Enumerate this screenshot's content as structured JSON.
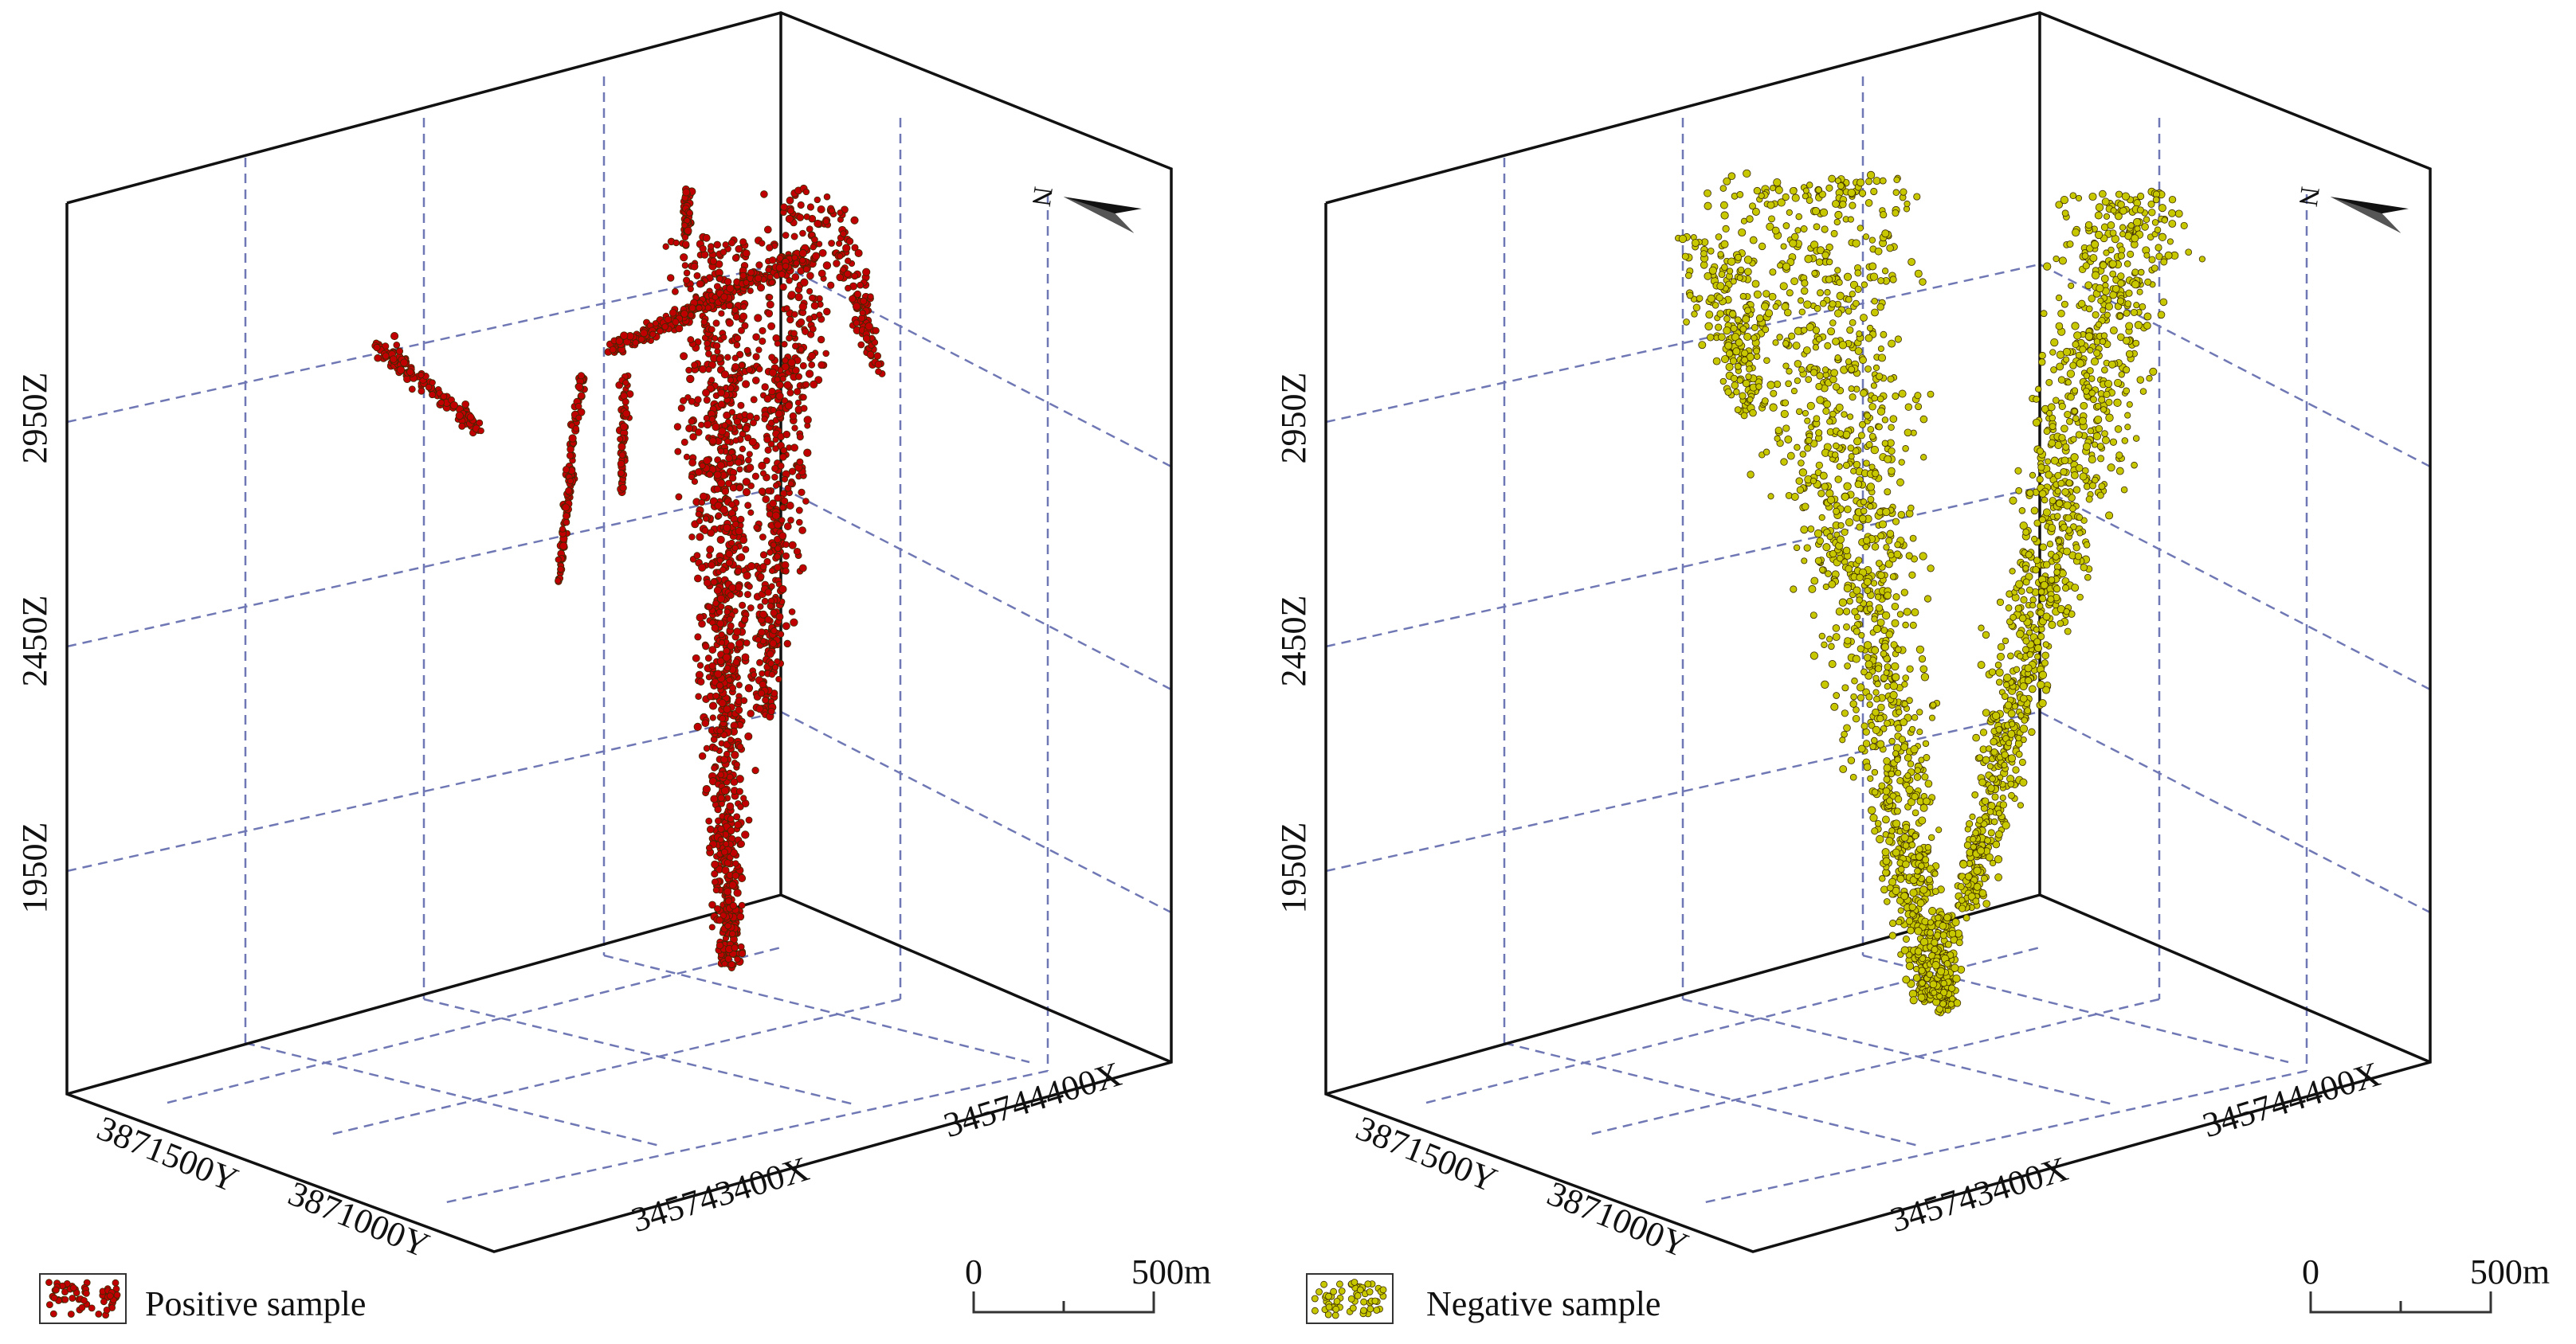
{
  "chart_data": [
    {
      "type": "scatter",
      "panel": "left",
      "projection": "3d",
      "series": [
        {
          "name": "Positive sample",
          "color": "#c00000",
          "approx_points": 2200
        }
      ],
      "legend": {
        "label": "Positive sample",
        "placement": "bottom-left"
      },
      "z_tick_labels": [
        "2950Z",
        "2450Z",
        "1950Z"
      ],
      "y_tick_labels": [
        "3871500Y",
        "3871000Y"
      ],
      "x_tick_labels": [
        "345743400X",
        "345744400X"
      ],
      "north_label": "N",
      "scale_bar": {
        "start_label": "0",
        "end_label": "500m",
        "length_m": 500
      }
    },
    {
      "type": "scatter",
      "panel": "right",
      "projection": "3d",
      "series": [
        {
          "name": "Negative sample",
          "color": "#c8c800",
          "approx_points": 2600
        }
      ],
      "legend": {
        "label": "Negative sample",
        "placement": "bottom-left"
      },
      "z_tick_labels": [
        "2950Z",
        "2450Z",
        "1950Z"
      ],
      "y_tick_labels": [
        "3871500Y",
        "3871000Y"
      ],
      "x_tick_labels": [
        "345743400X",
        "345744400X"
      ],
      "north_label": "N",
      "scale_bar": {
        "start_label": "0",
        "end_label": "500m",
        "length_m": 500
      }
    }
  ]
}
